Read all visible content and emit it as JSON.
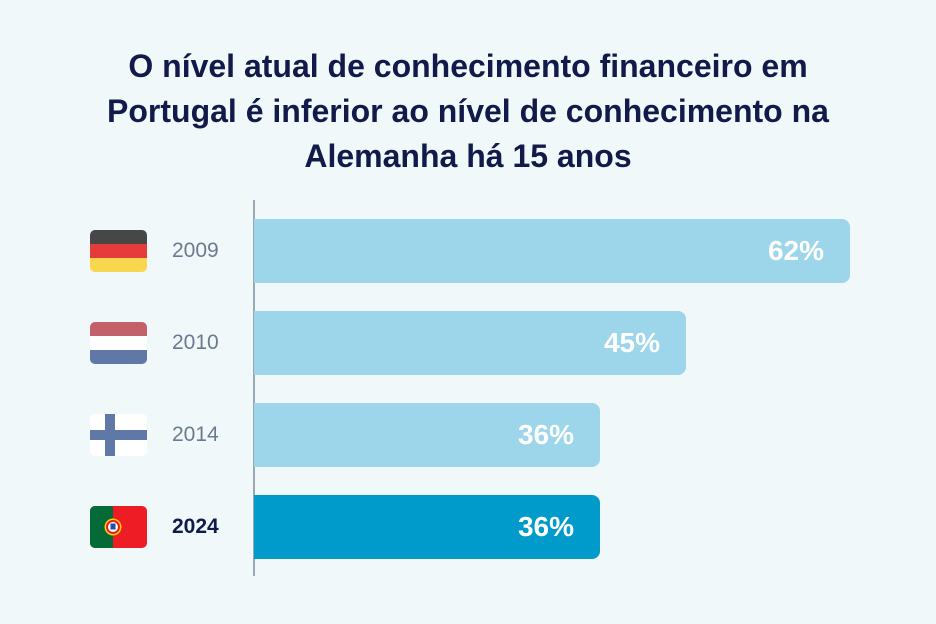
{
  "chart_data": {
    "type": "bar",
    "orientation": "horizontal",
    "title": "O nível atual de conhecimento financeiro em Portugal é inferior ao nível de conhecimento na Alemanha há 15 anos",
    "categories": [
      "2009",
      "2010",
      "2014",
      "2024"
    ],
    "values": [
      62,
      45,
      36,
      36
    ],
    "value_labels": [
      "62%",
      "45%",
      "36%",
      "36%"
    ],
    "flags": [
      "germany-flag-icon",
      "netherlands-flag-icon",
      "finland-flag-icon",
      "portugal-flag-icon"
    ],
    "highlight_index": 3,
    "xlim": [
      0,
      66
    ],
    "grid": false,
    "colors": {
      "bar": "#9dd5ea",
      "bar_highlight": "#009bcb",
      "title": "#121a4a",
      "year": "#6c7a91",
      "background": "#f1f8fa"
    }
  }
}
